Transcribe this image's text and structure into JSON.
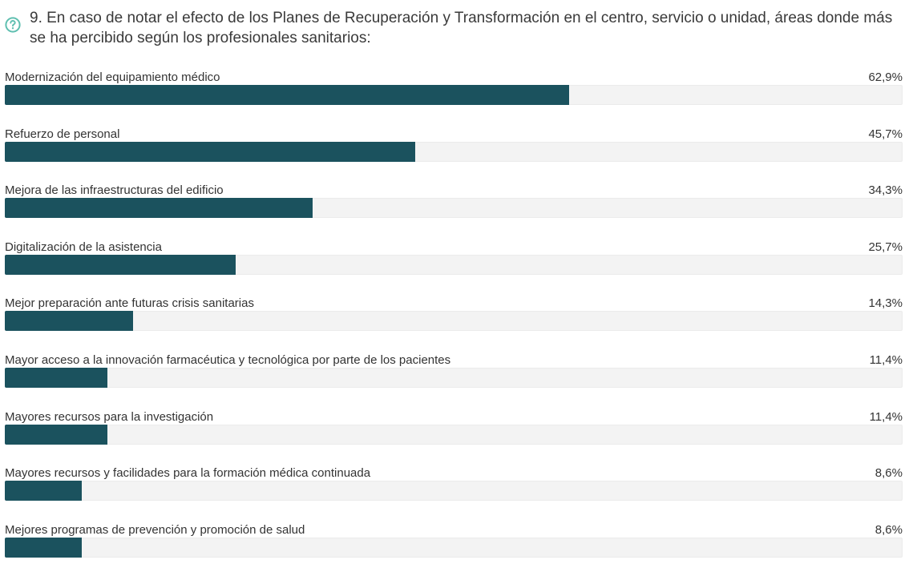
{
  "question": {
    "title": "9. En caso de notar el efecto de los Planes de Recuperación y Transformación en el centro, servicio o unidad, áreas donde más se ha percibido según los profesionales sanitarios:",
    "icon": "help-circle-icon"
  },
  "colors": {
    "bar_fill": "#1b525e",
    "track": "#f3f3f3",
    "icon": "#5fbfb0"
  },
  "chart_data": {
    "type": "bar",
    "orientation": "horizontal",
    "title": "9. En caso de notar el efecto de los Planes de Recuperación y Transformación en el centro, servicio o unidad, áreas donde más se ha percibido según los profesionales sanitarios:",
    "xlim": [
      0,
      100
    ],
    "categories": [
      "Modernización del equipamiento médico",
      "Refuerzo de personal",
      "Mejora de las infraestructuras del edificio",
      "Digitalización de la asistencia",
      "Mejor preparación ante futuras crisis sanitarias",
      "Mayor acceso a la innovación farmacéutica y tecnológica por parte de los pacientes",
      "Mayores recursos para la investigación",
      "Mayores recursos y facilidades para la formación médica continuada",
      "Mejores programas de prevención y promoción de salud"
    ],
    "values": [
      62.9,
      45.7,
      34.3,
      25.7,
      14.3,
      11.4,
      11.4,
      8.6,
      8.6
    ],
    "value_labels": [
      "62,9%",
      "45,7%",
      "34,3%",
      "25,7%",
      "14,3%",
      "11,4%",
      "11,4%",
      "8,6%",
      "8,6%"
    ]
  }
}
